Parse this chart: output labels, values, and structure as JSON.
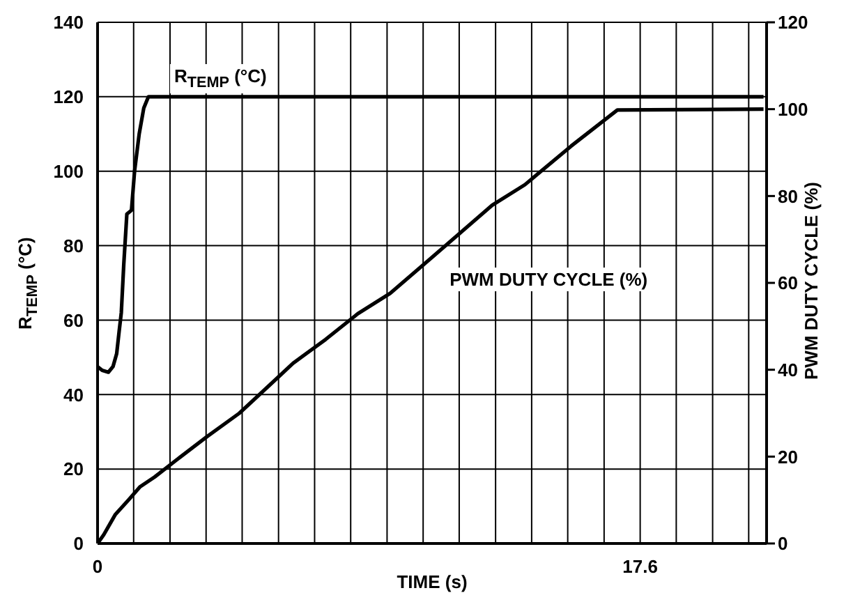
{
  "chart_data": {
    "type": "line",
    "xlabel": "TIME (s)",
    "ylabel": "R$_{TEMP}$ (°C)",
    "y2label": "PWM DUTY CYCLE (%)",
    "xlim": [
      0,
      21.7
    ],
    "ylim": [
      0,
      140
    ],
    "y2lim": [
      0,
      120
    ],
    "xticks": [
      0,
      {
        "value": 1.17,
        "label": null
      },
      {
        "value": 2.35,
        "label": null
      },
      {
        "value": 3.52,
        "label": null
      },
      {
        "value": 4.69,
        "label": null
      },
      {
        "value": 5.87,
        "label": null
      },
      {
        "value": 7.04,
        "label": null
      },
      {
        "value": 8.21,
        "label": null
      },
      {
        "value": 9.39,
        "label": null
      },
      {
        "value": 10.56,
        "label": null
      },
      {
        "value": 11.73,
        "label": null
      },
      {
        "value": 12.91,
        "label": null
      },
      {
        "value": 14.08,
        "label": null
      },
      {
        "value": 15.25,
        "label": null
      },
      {
        "value": 16.43,
        "label": null
      },
      17.6,
      {
        "value": 18.77,
        "label": null
      },
      {
        "value": 19.95,
        "label": null
      },
      {
        "value": 21.12,
        "label": null
      }
    ],
    "yticks": [
      0,
      20,
      40,
      60,
      80,
      100,
      120,
      140
    ],
    "y2ticks": [
      0,
      20,
      40,
      60,
      80,
      100,
      120
    ],
    "grid": true,
    "series": [
      {
        "name": "R$_{TEMP}$ (°C)",
        "color": "#000000",
        "x": [
          0,
          0.15,
          0.35,
          0.5,
          0.62,
          0.7,
          0.77,
          0.85,
          0.95,
          1.1,
          1.2,
          1.35,
          1.5,
          1.65,
          21.6
        ],
        "values": [
          47.5,
          46.5,
          46,
          47.5,
          51,
          57,
          62,
          75,
          88.5,
          89.5,
          100,
          110,
          117,
          120,
          120
        ]
      },
      {
        "name": "PWM DUTY CYCLE (%)",
        "color": "#000000",
        "axis": "y2",
        "x": [
          0,
          0.2,
          0.57,
          1.0,
          1.37,
          1.85,
          2.7,
          3.55,
          4.6,
          5.89,
          6.34,
          7.4,
          8.44,
          9.49,
          10.85,
          12.8,
          13.86,
          15.36,
          16.86,
          21.6
        ],
        "values": [
          0,
          2,
          6.6,
          10,
          13,
          15.3,
          20,
          24.6,
          30,
          38.5,
          41.5,
          47,
          52.9,
          57.6,
          65.9,
          77.9,
          82.6,
          91.5,
          99.8,
          100
        ]
      }
    ]
  }
}
